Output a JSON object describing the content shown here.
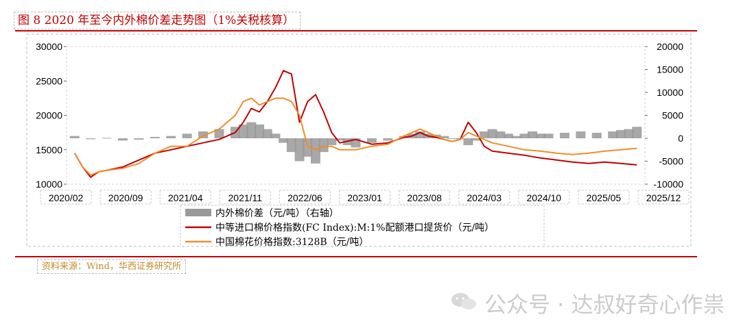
{
  "figure_title": "图 8 2020 年至今内外棉价差走势图（1%关税核算）",
  "source_note": "资料来源：Wind，华西证券研究所",
  "watermark": "公众号 · 达叔好奇心作祟",
  "colors": {
    "title_red": "#c00000",
    "fc_index": "#c00000",
    "china_cotton": "#f08c2a",
    "spread_bars": "#999999",
    "source_text": "#c08a2a"
  },
  "chart_data": {
    "type": "line",
    "x_tick_labels": [
      "2020/02",
      "2020/09",
      "2021/04",
      "2021/11",
      "2022/06",
      "2023/01",
      "2023/08",
      "2024/03",
      "2024/10",
      "2025/05",
      "2025/12"
    ],
    "xlim": [
      "2020-01",
      "2026-01"
    ],
    "y_left": {
      "lim": [
        10000,
        30000
      ],
      "ticks": [
        "30000",
        "25000",
        "20000",
        "15000",
        "10000"
      ]
    },
    "y_right": {
      "lim": [
        -10000,
        20000
      ],
      "ticks": [
        "20000",
        "15000",
        "10000",
        "5000",
        "0",
        "-5000",
        "-10000"
      ],
      "label": ""
    },
    "series": [
      {
        "name": "内外棉价差（元/吨）（右轴）",
        "kind": "bar",
        "axis": "right",
        "color": "#999999",
        "x": [
          "2020-02",
          "2020-04",
          "2020-06",
          "2020-08",
          "2020-10",
          "2020-12",
          "2021-02",
          "2021-04",
          "2021-06",
          "2021-08",
          "2021-10",
          "2021-11",
          "2021-12",
          "2022-01",
          "2022-02",
          "2022-03",
          "2022-04",
          "2022-05",
          "2022-06",
          "2022-07",
          "2022-08",
          "2022-09",
          "2022-10",
          "2022-11",
          "2022-12",
          "2023-01",
          "2023-03",
          "2023-05",
          "2023-07",
          "2023-08",
          "2023-09",
          "2023-10",
          "2023-11",
          "2023-12",
          "2024-01",
          "2024-02",
          "2024-03",
          "2024-04",
          "2024-05",
          "2024-06",
          "2024-07",
          "2024-08",
          "2024-09",
          "2024-10",
          "2024-11",
          "2024-12",
          "2025-01",
          "2025-03",
          "2025-05",
          "2025-07",
          "2025-09",
          "2025-10",
          "2025-11",
          "2025-12"
        ],
        "values": [
          500,
          -200,
          100,
          -500,
          -300,
          300,
          500,
          1000,
          1500,
          2000,
          2500,
          3000,
          3500,
          3000,
          2000,
          1000,
          -1000,
          -3000,
          -5000,
          -4000,
          -5500,
          -3000,
          -1500,
          -500,
          -1500,
          -2000,
          -1000,
          -500,
          500,
          1000,
          1500,
          1000,
          800,
          500,
          0,
          -200,
          -1500,
          -500,
          1500,
          2000,
          1500,
          1000,
          500,
          1000,
          1500,
          1000,
          1000,
          1200,
          1500,
          1200,
          1500,
          1800,
          2000,
          2500
        ]
      },
      {
        "name": "中等进口棉价格指数(FC Index):M:1%配额港口提货价（元/吨）",
        "kind": "line",
        "axis": "left",
        "color": "#c00000",
        "x": [
          "2020-02",
          "2020-03",
          "2020-04",
          "2020-05",
          "2020-06",
          "2020-08",
          "2020-10",
          "2020-12",
          "2021-02",
          "2021-04",
          "2021-06",
          "2021-08",
          "2021-10",
          "2021-11",
          "2021-12",
          "2022-01",
          "2022-02",
          "2022-03",
          "2022-04",
          "2022-05",
          "2022-06",
          "2022-07",
          "2022-08",
          "2022-09",
          "2022-10",
          "2022-11",
          "2023-01",
          "2023-03",
          "2023-05",
          "2023-07",
          "2023-08",
          "2023-09",
          "2023-10",
          "2023-11",
          "2023-12",
          "2024-01",
          "2024-02",
          "2024-03",
          "2024-04",
          "2024-05",
          "2024-06",
          "2024-08",
          "2024-10",
          "2024-12",
          "2025-02",
          "2025-04",
          "2025-06",
          "2025-08",
          "2025-10",
          "2025-12"
        ],
        "values": [
          14500,
          12500,
          11000,
          11800,
          12000,
          12500,
          13500,
          14500,
          15000,
          15500,
          16000,
          16500,
          17500,
          19000,
          21000,
          20500,
          22000,
          24000,
          26500,
          26000,
          19000,
          22000,
          23000,
          20500,
          17500,
          16000,
          16500,
          15800,
          16000,
          16800,
          17000,
          17500,
          17000,
          16800,
          16500,
          16200,
          16500,
          19000,
          17500,
          15500,
          14800,
          14500,
          14200,
          13800,
          13500,
          13200,
          13000,
          13200,
          13000,
          12800
        ]
      },
      {
        "name": "中国棉花价格指数:3128B（元/吨）",
        "kind": "line",
        "axis": "left",
        "color": "#f08c2a",
        "x": [
          "2020-02",
          "2020-03",
          "2020-04",
          "2020-05",
          "2020-06",
          "2020-08",
          "2020-10",
          "2020-12",
          "2021-02",
          "2021-04",
          "2021-06",
          "2021-08",
          "2021-10",
          "2021-11",
          "2021-12",
          "2022-01",
          "2022-02",
          "2022-03",
          "2022-04",
          "2022-05",
          "2022-06",
          "2022-07",
          "2022-08",
          "2022-09",
          "2022-10",
          "2022-11",
          "2023-01",
          "2023-03",
          "2023-05",
          "2023-07",
          "2023-08",
          "2023-09",
          "2023-10",
          "2023-11",
          "2023-12",
          "2024-01",
          "2024-02",
          "2024-03",
          "2024-04",
          "2024-05",
          "2024-06",
          "2024-08",
          "2024-10",
          "2024-12",
          "2025-02",
          "2025-04",
          "2025-06",
          "2025-08",
          "2025-10",
          "2025-12"
        ],
        "values": [
          14500,
          12500,
          11300,
          11800,
          12000,
          12300,
          13000,
          14500,
          15500,
          15500,
          17000,
          18000,
          20000,
          22000,
          22500,
          21500,
          22000,
          22500,
          22500,
          22000,
          20000,
          15500,
          15000,
          15500,
          15500,
          15000,
          15000,
          15500,
          15800,
          17000,
          17500,
          18000,
          17500,
          17000,
          16500,
          16200,
          16500,
          17500,
          17000,
          16500,
          16000,
          15500,
          15000,
          14800,
          14500,
          14300,
          14500,
          14800,
          15000,
          15200
        ]
      }
    ]
  }
}
